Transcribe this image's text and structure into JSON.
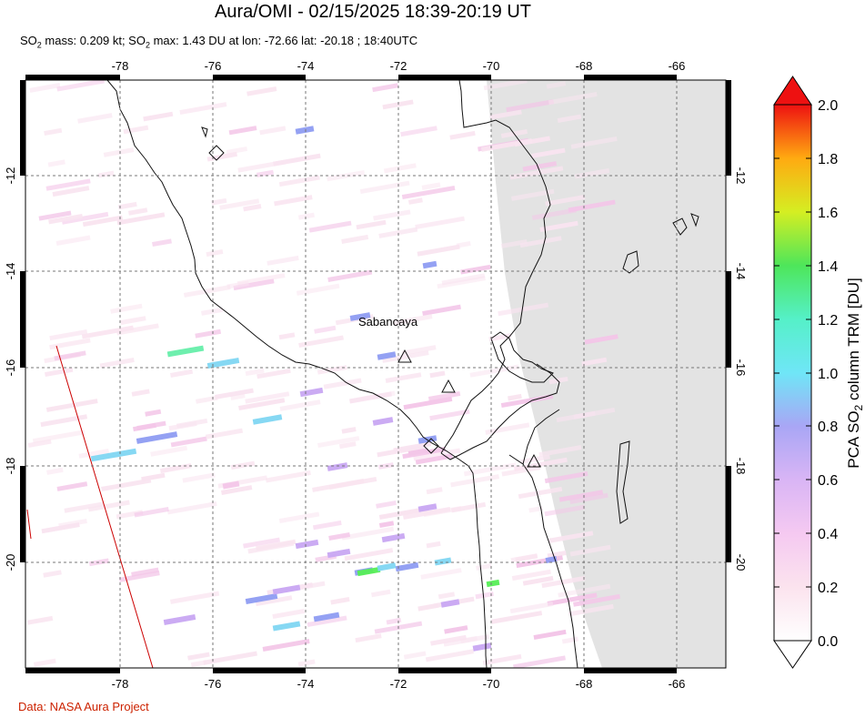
{
  "header": {
    "title": "Aura/OMI - 02/15/2025 18:39-20:19 UT",
    "subtitle_prefix": "SO",
    "subtitle_mid1": " mass: 0.209 kt; SO",
    "subtitle_rest": " max: 1.43 DU at lon: -72.66 lat: -20.18 ; 18:40UTC",
    "subscript": "2"
  },
  "credit": "Data: NASA Aura Project",
  "map": {
    "lon_ticks": [
      "-78",
      "-76",
      "-74",
      "-72",
      "-70",
      "-68",
      "-66"
    ],
    "lat_ticks": [
      "-12",
      "-14",
      "-16",
      "-18",
      "-20"
    ],
    "lon_range": [
      -80.0,
      -65.0
    ],
    "lat_range": [
      -10.0,
      -22.7
    ],
    "no_data_color": "#e3e3e3",
    "grid": "dashed",
    "place_label": "Sabancaya",
    "colors": {
      "light_pink": "#f9e4f0",
      "pink": "#f3c6e8",
      "lavender": "#c8a6f2",
      "blue": "#8e9cf2",
      "cyan": "#7fd6f2",
      "mint": "#66eeaa",
      "green": "#55ee55",
      "orbit_line": "#cc0000"
    }
  },
  "colorbar": {
    "ticks": [
      "2.0",
      "1.8",
      "1.6",
      "1.4",
      "1.2",
      "1.0",
      "0.8",
      "0.6",
      "0.4",
      "0.2",
      "0.0"
    ],
    "label_pre": "PCA SO",
    "label_sub": "2",
    "label_post": " column TRM [DU]"
  }
}
